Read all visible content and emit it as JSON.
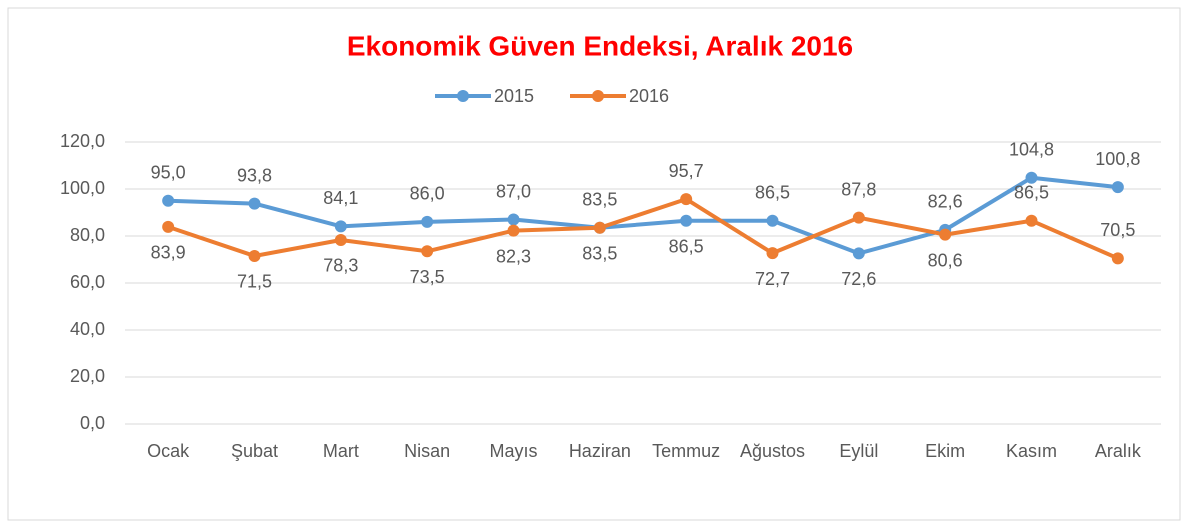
{
  "chart_data": {
    "type": "line",
    "title": "Ekonomik Güven Endeksi, Aralık 2016",
    "categories": [
      "Ocak",
      "Şubat",
      "Mart",
      "Nisan",
      "Mayıs",
      "Haziran",
      "Temmuz",
      "Ağustos",
      "Eylül",
      "Ekim",
      "Kasım",
      "Aralık"
    ],
    "series": [
      {
        "name": "2015",
        "color": "#5b9bd5",
        "values": [
          95.0,
          93.8,
          84.1,
          86.0,
          87.0,
          83.5,
          86.5,
          86.5,
          72.6,
          82.6,
          104.8,
          100.8
        ],
        "value_labels": [
          "95,0",
          "93,8",
          "84,1",
          "86,0",
          "87,0",
          "83,5",
          "86,5",
          "86,5",
          "72,6",
          "82,6",
          "104,8",
          "100,8"
        ]
      },
      {
        "name": "2016",
        "color": "#ed7d31",
        "values": [
          83.9,
          71.5,
          78.3,
          73.5,
          82.3,
          83.5,
          95.7,
          72.7,
          87.8,
          80.6,
          86.5,
          70.5
        ],
        "value_labels": [
          "83,9",
          "71,5",
          "78,3",
          "73,5",
          "82,3",
          "83,5",
          "95,7",
          "72,7",
          "87,8",
          "80,6",
          "86,5",
          "70,5"
        ]
      }
    ],
    "ylim": [
      0,
      120
    ],
    "yticks": [
      {
        "value": 0,
        "label": "0,0"
      },
      {
        "value": 20,
        "label": "20,0"
      },
      {
        "value": 40,
        "label": "40,0"
      },
      {
        "value": 60,
        "label": "60,0"
      },
      {
        "value": 80,
        "label": "80,0"
      },
      {
        "value": 100,
        "label": "100,0"
      },
      {
        "value": 120,
        "label": "120,0"
      }
    ],
    "grid": true,
    "legend": "top"
  }
}
